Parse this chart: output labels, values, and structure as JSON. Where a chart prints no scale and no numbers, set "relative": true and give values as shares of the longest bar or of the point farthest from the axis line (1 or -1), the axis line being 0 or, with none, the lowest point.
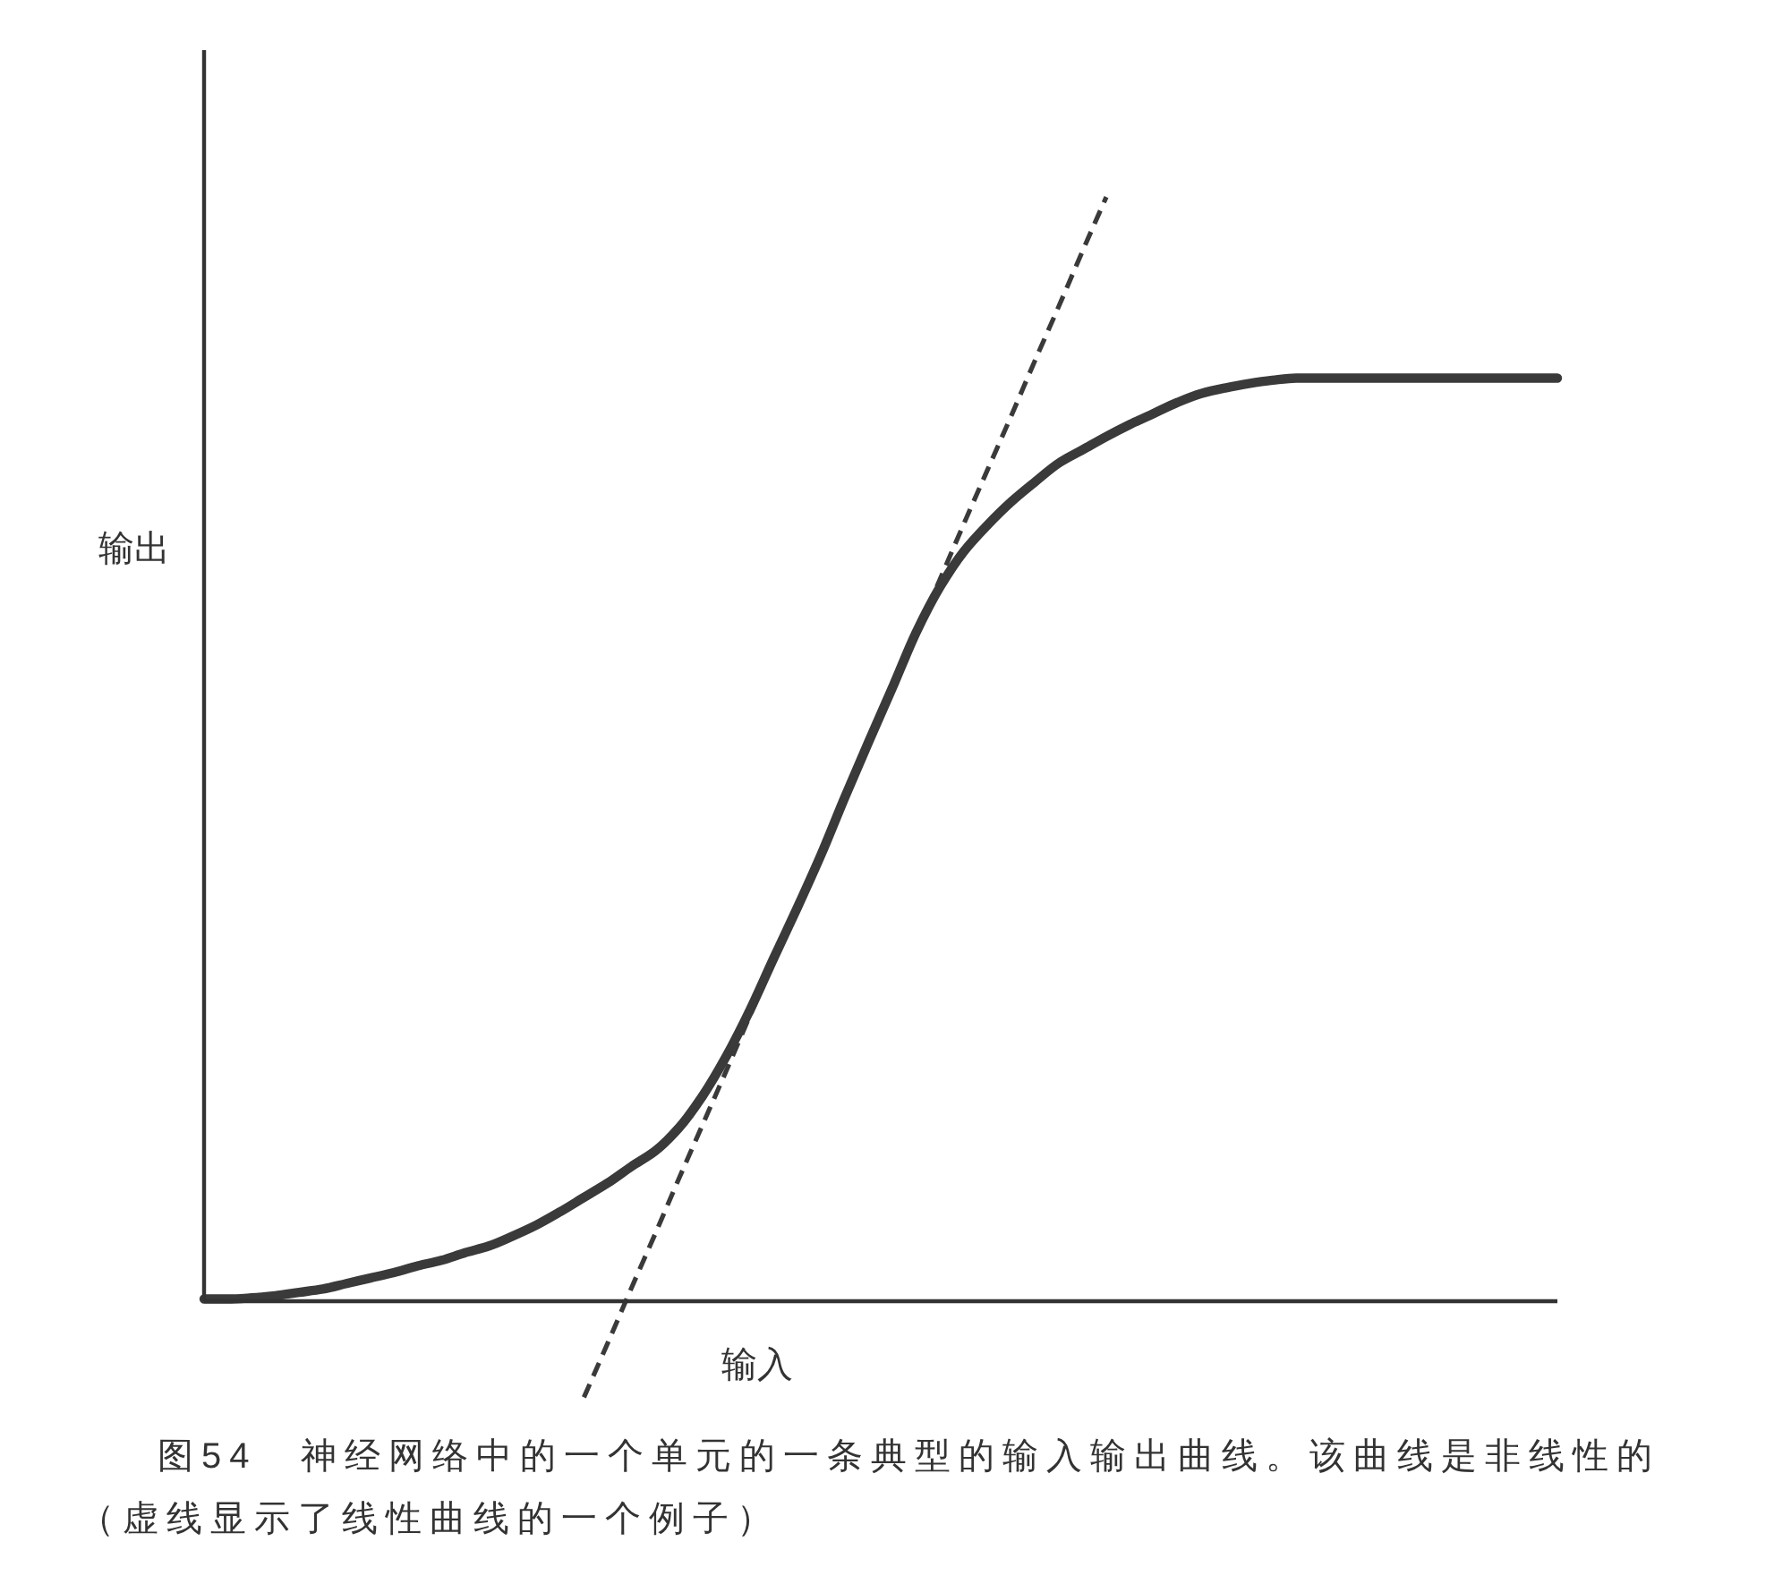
{
  "chart_data": {
    "type": "line",
    "relative": true,
    "xlabel": "输入",
    "ylabel": "输出",
    "annotations": [
      "图54　神经网络中的一个单元的一条典型的输入输出曲线。该曲线是非线性的",
      "（虚线显示了线性曲线的一个例子）"
    ],
    "categories": [
      null,
      null,
      null,
      null,
      null,
      null,
      null,
      null,
      null,
      null,
      null,
      null,
      null,
      null,
      null,
      null,
      null,
      null,
      null,
      null,
      null,
      null,
      null,
      null,
      null,
      null,
      null,
      null,
      null,
      null,
      null,
      null,
      null,
      null,
      null,
      null,
      null,
      null,
      null,
      null,
      null,
      null,
      null,
      null,
      null,
      null,
      null,
      null,
      null,
      null,
      null,
      null,
      null,
      null,
      null,
      null,
      null,
      null
    ],
    "series": [
      {
        "color": "#3a3a3a",
        "values": [
          0.002,
          0.002,
          0.003,
          0.005,
          0.008,
          0.011,
          0.016,
          0.021,
          0.026,
          0.032,
          0.037,
          0.044,
          0.05,
          0.059,
          0.069,
          0.081,
          0.094,
          0.107,
          0.122,
          0.136,
          0.157,
          0.186,
          0.222,
          0.264,
          0.311,
          0.357,
          0.405,
          0.457,
          0.507,
          0.556,
          0.606,
          0.647,
          0.679,
          0.703,
          0.724,
          0.742,
          0.759,
          0.771,
          0.783,
          0.794,
          0.804,
          0.814,
          0.822,
          0.827,
          0.831,
          0.834,
          0.836,
          0.836,
          0.836,
          0.836,
          0.836,
          0.836,
          0.836,
          0.836,
          0.836,
          0.836,
          0.836,
          0.836
        ]
      },
      {
        "color": "#3a3a3a",
        "line_style": "dashed",
        "values": [
          null,
          null,
          null,
          null,
          null,
          null,
          null,
          null,
          null,
          null,
          null,
          null,
          null,
          null,
          null,
          null,
          -0.087,
          -0.038,
          0.012,
          0.061,
          0.111,
          0.16,
          0.209,
          0.259,
          0.308,
          0.358,
          0.407,
          0.457,
          0.506,
          0.555,
          0.605,
          0.654,
          0.704,
          0.753,
          0.802,
          0.852,
          0.901,
          0.951,
          1.0,
          null,
          null,
          null,
          null,
          null,
          null,
          null,
          null,
          null,
          null,
          null,
          null,
          null,
          null,
          null,
          null,
          null,
          null,
          null
        ]
      }
    ]
  }
}
